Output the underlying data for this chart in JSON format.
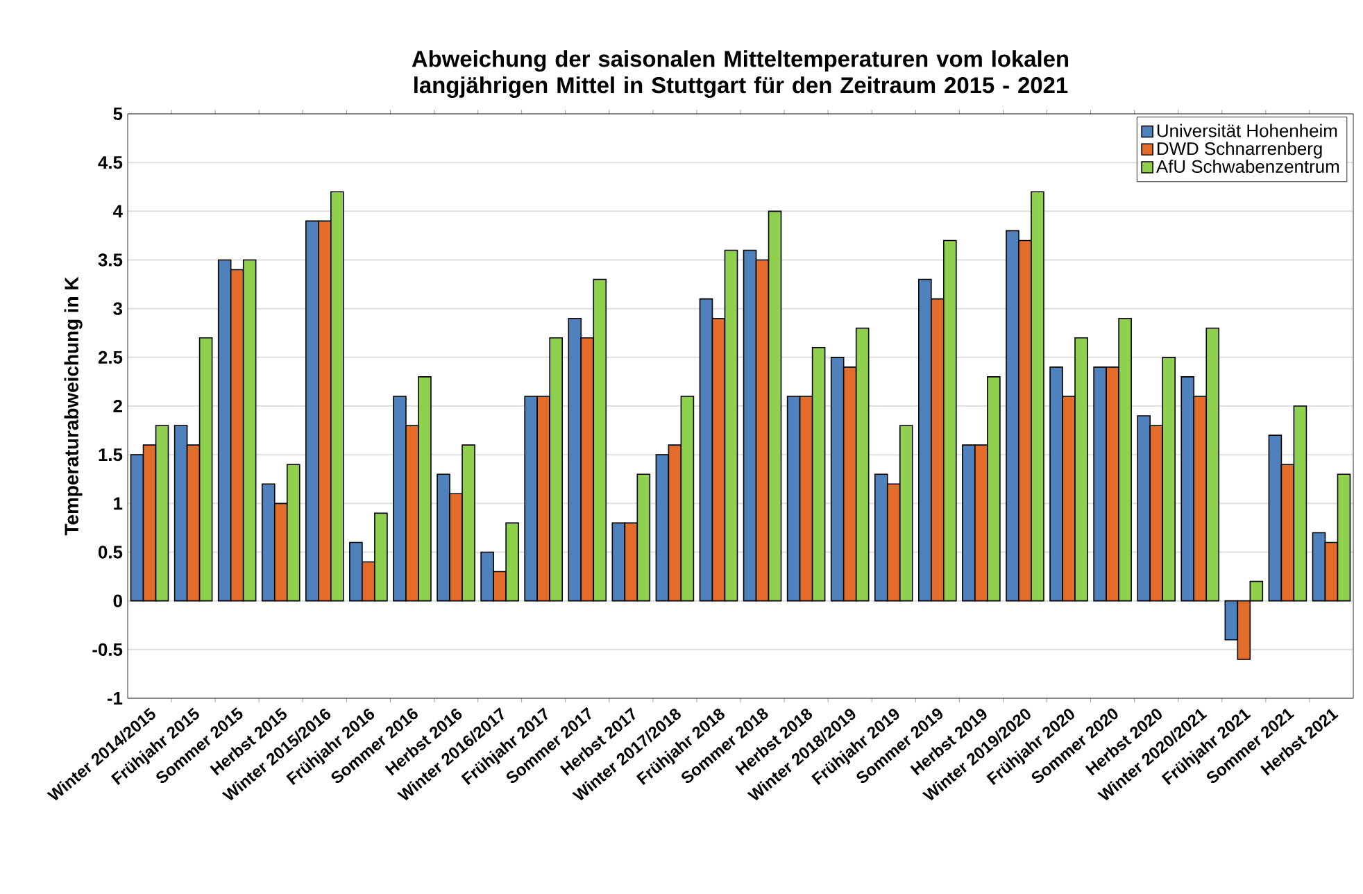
{
  "chart_data": {
    "type": "bar",
    "title": "Abweichung der saisonalen Mitteltemperaturen vom lokalen langjährigen Mittel in Stuttgart für den Zeitraum 2015 - 2021",
    "ylabel": "Temperaturabweichung in K",
    "categories": [
      "Winter 2014/2015",
      "Frühjahr 2015",
      "Sommer 2015",
      "Herbst 2015",
      "Winter 2015/2016",
      "Frühjahr 2016",
      "Sommer 2016",
      "Herbst 2016",
      "Winter 2016/2017",
      "Frühjahr 2017",
      "Sommer 2017",
      "Herbst 2017",
      "Winter 2017/2018",
      "Frühjahr 2018",
      "Sommer 2018",
      "Herbst 2018",
      "Winter 2018/2019",
      "Frühjahr 2019",
      "Sommer 2019",
      "Herbst 2019",
      "Winter 2019/2020",
      "Frühjahr 2020",
      "Sommer 2020",
      "Herbst 2020",
      "Winter 2020/2021",
      "Frühjahr 2021",
      "Sommer 2021",
      "Herbst 2021"
    ],
    "series": [
      {
        "name": "Universität Hohenheim",
        "color": "#4f81bd",
        "values": [
          1.5,
          1.8,
          3.5,
          1.2,
          3.9,
          0.6,
          2.1,
          1.3,
          0.5,
          2.1,
          2.9,
          0.8,
          1.5,
          3.1,
          3.6,
          2.1,
          2.5,
          1.3,
          3.3,
          1.6,
          3.8,
          2.4,
          2.4,
          1.9,
          2.3,
          -0.4,
          1.7,
          0.7
        ]
      },
      {
        "name": "DWD Schnarrenberg",
        "color": "#e36c2a",
        "values": [
          1.6,
          1.6,
          3.4,
          1.0,
          3.9,
          0.4,
          1.8,
          1.1,
          0.3,
          2.1,
          2.7,
          0.8,
          1.6,
          2.9,
          3.5,
          2.1,
          2.4,
          1.2,
          3.1,
          1.6,
          3.7,
          2.1,
          2.4,
          1.8,
          2.1,
          -0.6,
          1.4,
          0.6
        ]
      },
      {
        "name": "AfU Schwabenzentrum",
        "color": "#8fd14f",
        "values": [
          1.8,
          2.7,
          3.5,
          1.4,
          4.2,
          0.9,
          2.3,
          1.6,
          0.8,
          2.7,
          3.3,
          1.3,
          2.1,
          3.6,
          4.0,
          2.6,
          2.8,
          1.8,
          3.7,
          2.3,
          4.2,
          2.7,
          2.9,
          2.5,
          2.8,
          0.2,
          2.0,
          1.3
        ]
      }
    ],
    "ylim": [
      -1,
      5
    ],
    "yticks": [
      -1,
      -0.5,
      0,
      0.5,
      1,
      1.5,
      2,
      2.5,
      3,
      3.5,
      4,
      4.5,
      5
    ],
    "grid": "y",
    "legend": "top right"
  }
}
